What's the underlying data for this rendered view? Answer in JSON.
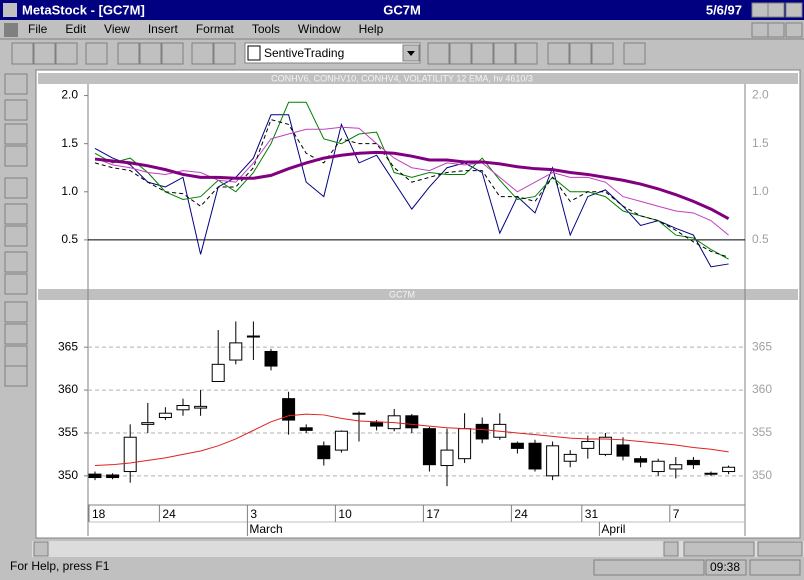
{
  "window": {
    "title": "MetaStock - [GC7M]",
    "symbol": "GC7M",
    "date": "5/6/97"
  },
  "menu": [
    "File",
    "Edit",
    "View",
    "Insert",
    "Format",
    "Tools",
    "Window",
    "Help"
  ],
  "toolbar": {
    "template": "SentiveTrading"
  },
  "status_bar": {
    "help": "For Help, press F1",
    "time": "09:38"
  },
  "chart_data": [
    {
      "type": "line",
      "title": "CONHV6, CONHV10, CONHV4, VOLATILITY 12 EMA, hv 4610/3",
      "ylim": [
        0,
        2.12
      ],
      "yticks": [
        0.5,
        {
          "value": 1,
          "label": "1.0"
        },
        1.5,
        {
          "value": 2,
          "label": "2.0"
        }
      ],
      "hline": 0.5,
      "series": [
        {
          "color": "#000080",
          "values": [
            1.45,
            1.35,
            1.28,
            1.1,
            1.05,
            1.15,
            0.35,
            1.05,
            1.15,
            1.35,
            1.8,
            1.8,
            1.1,
            0.95,
            1.7,
            1.3,
            1.38,
            1.1,
            0.82,
            1.05,
            1.25,
            1.3,
            1.2,
            0.57,
            0.95,
            0.78,
            1.25,
            0.55,
            0.95,
            1.02,
            0.85,
            0.65,
            0.7,
            0.62,
            0.55,
            0.22,
            0.25
          ]
        },
        {
          "color": "#008000",
          "values": [
            1.4,
            1.3,
            1.35,
            1.2,
            1.0,
            0.92,
            0.95,
            1.12,
            1.0,
            1.2,
            1.5,
            1.93,
            1.93,
            1.55,
            1.5,
            1.6,
            1.62,
            1.2,
            1.15,
            1.2,
            1.18,
            1.18,
            1.35,
            1.12,
            0.92,
            0.95,
            1.15,
            1.0,
            1.0,
            0.95,
            0.8,
            0.75,
            0.7,
            0.55,
            0.52,
            0.4,
            0.3
          ]
        },
        {
          "color": "#c040c0",
          "values": [
            1.35,
            1.28,
            1.25,
            1.2,
            1.18,
            1.22,
            1.2,
            1.12,
            1.1,
            1.3,
            1.55,
            1.6,
            1.65,
            1.65,
            1.67,
            1.66,
            1.5,
            1.35,
            1.25,
            1.22,
            1.3,
            1.28,
            1.3,
            1.15,
            1.0,
            1.1,
            1.2,
            1.15,
            1.15,
            1.1,
            0.95,
            0.9,
            0.85,
            0.8,
            0.78,
            0.7,
            0.55
          ]
        },
        {
          "color": "#000000",
          "dash": true,
          "values": [
            1.3,
            1.25,
            1.22,
            1.1,
            1.0,
            0.98,
            0.85,
            1.05,
            1.05,
            1.25,
            1.75,
            1.7,
            1.4,
            1.3,
            1.55,
            1.5,
            1.5,
            1.25,
            1.1,
            1.15,
            1.2,
            1.22,
            1.22,
            0.95,
            0.95,
            0.9,
            1.15,
            0.9,
            1.0,
            1.0,
            0.85,
            0.75,
            0.7,
            0.6,
            0.48,
            0.38,
            0.32
          ]
        },
        {
          "color": "#800080",
          "width": 3,
          "values": [
            1.34,
            1.32,
            1.3,
            1.27,
            1.23,
            1.18,
            1.15,
            1.15,
            1.14,
            1.14,
            1.17,
            1.24,
            1.3,
            1.35,
            1.38,
            1.4,
            1.41,
            1.4,
            1.37,
            1.33,
            1.33,
            1.31,
            1.31,
            1.29,
            1.26,
            1.24,
            1.23,
            1.2,
            1.18,
            1.15,
            1.12,
            1.08,
            1.03,
            0.97,
            0.9,
            0.82,
            0.72
          ]
        }
      ]
    },
    {
      "type": "candlestick",
      "title": "GC7M",
      "categories": [
        "18",
        null,
        null,
        null,
        "24",
        null,
        null,
        null,
        null,
        "3",
        null,
        null,
        null,
        null,
        "10",
        null,
        null,
        null,
        null,
        "17",
        null,
        null,
        null,
        null,
        "24",
        null,
        null,
        null,
        "31",
        null,
        null,
        null,
        null,
        "7",
        null,
        null,
        null
      ],
      "months": [
        null,
        null,
        null,
        null,
        null,
        null,
        null,
        null,
        null,
        "March",
        null,
        null,
        null,
        null,
        null,
        null,
        null,
        null,
        null,
        null,
        null,
        null,
        null,
        null,
        null,
        null,
        null,
        null,
        null,
        "April",
        null,
        null,
        null,
        null,
        null,
        null,
        null
      ],
      "ylim": [
        346.6,
        370.5
      ],
      "yticks": [
        350,
        355,
        360,
        365
      ],
      "grid": true,
      "up_color": "#ffffff",
      "down_color": "#000000",
      "open": [
        350.2,
        350.1,
        350.5,
        356,
        356.8,
        357.7,
        357.9,
        361,
        363.5,
        366.2,
        364.5,
        359,
        355.6,
        353.5,
        353,
        357.3,
        356.2,
        355.5,
        357,
        355.5,
        351.2,
        352,
        356,
        354.5,
        353.8,
        353.8,
        350,
        351.7,
        353.2,
        352.5,
        353.6,
        352,
        350.5,
        350.8,
        351.8,
        350.3,
        350.5
      ],
      "high": [
        350.5,
        350.3,
        356,
        358.5,
        358,
        359,
        360,
        367,
        368,
        368,
        364.8,
        359.8,
        356,
        354,
        355.3,
        357.5,
        356.5,
        357.8,
        357.2,
        355.7,
        355.5,
        357.3,
        356.8,
        357.3,
        354,
        354.2,
        354,
        353,
        354.7,
        355,
        354.5,
        352.3,
        352,
        352.2,
        352.2,
        350.5,
        351.2
      ],
      "low": [
        349.5,
        349.6,
        349.2,
        355,
        356.5,
        357,
        357,
        361,
        363,
        363.5,
        362.3,
        354.8,
        355,
        351.2,
        352.7,
        354,
        355.3,
        355.2,
        355,
        350.5,
        348.8,
        351.5,
        353.8,
        354.2,
        352.6,
        350.5,
        349.5,
        351,
        352,
        352.3,
        351.8,
        351,
        350,
        349.7,
        350.8,
        350,
        350.2
      ],
      "close": [
        349.8,
        349.8,
        354.5,
        356.2,
        357.3,
        358.2,
        358.1,
        363,
        365.5,
        366.3,
        362.8,
        356.5,
        355.3,
        352,
        355.2,
        357.2,
        355.8,
        357,
        355.6,
        351.3,
        353,
        355.5,
        354.3,
        356,
        353.2,
        350.8,
        353.5,
        352.5,
        354,
        354.5,
        352.3,
        351.6,
        351.7,
        351.3,
        351.3,
        350.2,
        351
      ],
      "overlay": {
        "color": "#e02020",
        "values": [
          351.2,
          351.3,
          351.5,
          351.8,
          352.1,
          352.5,
          352.9,
          353.5,
          354.3,
          355.3,
          356.3,
          357.0,
          357.2,
          357.1,
          356.7,
          356.4,
          356.3,
          356.2,
          356.0,
          355.8,
          355.6,
          355.5,
          355.4,
          355.2,
          355.0,
          354.8,
          354.6,
          354.4,
          354.3,
          354.3,
          354.2,
          354.0,
          353.8,
          353.6,
          353.3,
          353.1,
          352.8
        ]
      }
    }
  ]
}
